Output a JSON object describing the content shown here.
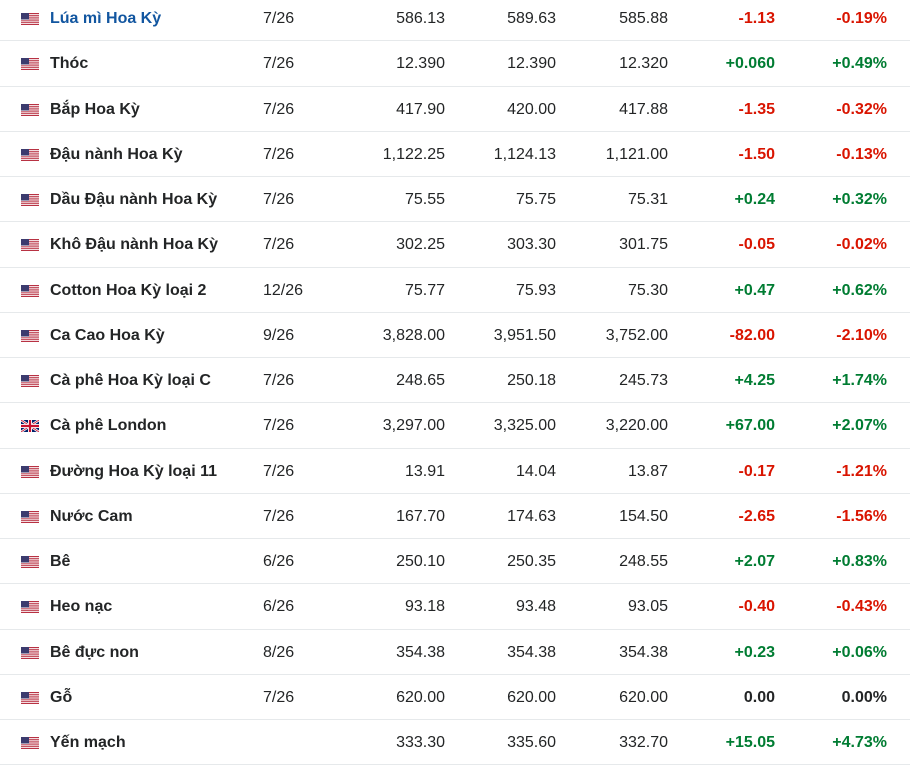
{
  "table": {
    "rows": [
      {
        "flag": "us",
        "name": "Lúa mì Hoa Kỳ",
        "month": "7/26",
        "last": "586.13",
        "high": "589.63",
        "low": "585.88",
        "change": "-1.13",
        "pct": "-0.19%"
      },
      {
        "flag": "us",
        "name": "Thóc",
        "month": "7/26",
        "last": "12.390",
        "high": "12.390",
        "low": "12.320",
        "change": "+0.060",
        "pct": "+0.49%"
      },
      {
        "flag": "us",
        "name": "Bắp Hoa Kỳ",
        "month": "7/26",
        "last": "417.90",
        "high": "420.00",
        "low": "417.88",
        "change": "-1.35",
        "pct": "-0.32%"
      },
      {
        "flag": "us",
        "name": "Đậu nành Hoa Kỳ",
        "month": "7/26",
        "last": "1,122.25",
        "high": "1,124.13",
        "low": "1,121.00",
        "change": "-1.50",
        "pct": "-0.13%"
      },
      {
        "flag": "us",
        "name": "Dầu Đậu nành Hoa Kỳ",
        "month": "7/26",
        "last": "75.55",
        "high": "75.75",
        "low": "75.31",
        "change": "+0.24",
        "pct": "+0.32%"
      },
      {
        "flag": "us",
        "name": "Khô Đậu nành Hoa Kỳ",
        "month": "7/26",
        "last": "302.25",
        "high": "303.30",
        "low": "301.75",
        "change": "-0.05",
        "pct": "-0.02%"
      },
      {
        "flag": "us",
        "name": "Cotton Hoa Kỳ loại 2",
        "month": "12/26",
        "last": "75.77",
        "high": "75.93",
        "low": "75.30",
        "change": "+0.47",
        "pct": "+0.62%"
      },
      {
        "flag": "us",
        "name": "Ca Cao Hoa Kỳ",
        "month": "9/26",
        "last": "3,828.00",
        "high": "3,951.50",
        "low": "3,752.00",
        "change": "-82.00",
        "pct": "-2.10%"
      },
      {
        "flag": "us",
        "name": "Cà phê Hoa Kỳ loại C",
        "month": "7/26",
        "last": "248.65",
        "high": "250.18",
        "low": "245.73",
        "change": "+4.25",
        "pct": "+1.74%"
      },
      {
        "flag": "uk",
        "name": "Cà phê London",
        "month": "7/26",
        "last": "3,297.00",
        "high": "3,325.00",
        "low": "3,220.00",
        "change": "+67.00",
        "pct": "+2.07%"
      },
      {
        "flag": "us",
        "name": "Đường Hoa Kỳ loại 11",
        "month": "7/26",
        "last": "13.91",
        "high": "14.04",
        "low": "13.87",
        "change": "-0.17",
        "pct": "-1.21%"
      },
      {
        "flag": "us",
        "name": "Nước Cam",
        "month": "7/26",
        "last": "167.70",
        "high": "174.63",
        "low": "154.50",
        "change": "-2.65",
        "pct": "-1.56%"
      },
      {
        "flag": "us",
        "name": "Bê",
        "month": "6/26",
        "last": "250.10",
        "high": "250.35",
        "low": "248.55",
        "change": "+2.07",
        "pct": "+0.83%"
      },
      {
        "flag": "us",
        "name": "Heo nạc",
        "month": "6/26",
        "last": "93.18",
        "high": "93.48",
        "low": "93.05",
        "change": "-0.40",
        "pct": "-0.43%"
      },
      {
        "flag": "us",
        "name": "Bê đực non",
        "month": "8/26",
        "last": "354.38",
        "high": "354.38",
        "low": "354.38",
        "change": "+0.23",
        "pct": "+0.06%"
      },
      {
        "flag": "us",
        "name": "Gỗ",
        "month": "7/26",
        "last": "620.00",
        "high": "620.00",
        "low": "620.00",
        "change": "0.00",
        "pct": "0.00%"
      },
      {
        "flag": "us",
        "name": "Yến mạch",
        "month": null,
        "last": "333.30",
        "high": "335.60",
        "low": "332.70",
        "change": "+15.05",
        "pct": "+4.73%"
      }
    ]
  }
}
